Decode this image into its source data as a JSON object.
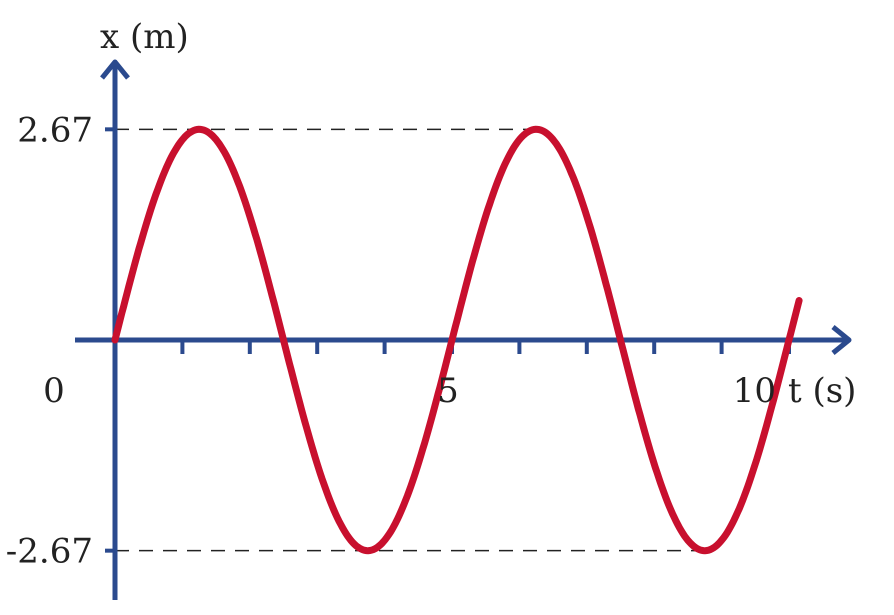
{
  "chart_data": {
    "type": "line",
    "title": "",
    "xlabel": "t (s)",
    "ylabel": "x (m)",
    "x_ticks": [
      0,
      1,
      2,
      3,
      4,
      5,
      6,
      7,
      8,
      9,
      10
    ],
    "x_tick_labels": [
      "0",
      "5",
      "10"
    ],
    "x_tick_label_values": [
      0,
      5,
      10
    ],
    "y_tick_labels": [
      "2.67",
      "-2.67"
    ],
    "y_tick_values": [
      2.67,
      -2.67
    ],
    "xlim": [
      0,
      10.9
    ],
    "ylim": [
      -3.9,
      4.0
    ],
    "grid": false,
    "reference_lines": [
      2.67,
      -2.67
    ],
    "series": [
      {
        "function": "x = A sin(2πt/T)",
        "amplitude": 2.67,
        "period": 5,
        "t_start": 0,
        "t_end": 10.15,
        "color": "#C8102E"
      }
    ],
    "axis_color": "#2B4A8E"
  }
}
